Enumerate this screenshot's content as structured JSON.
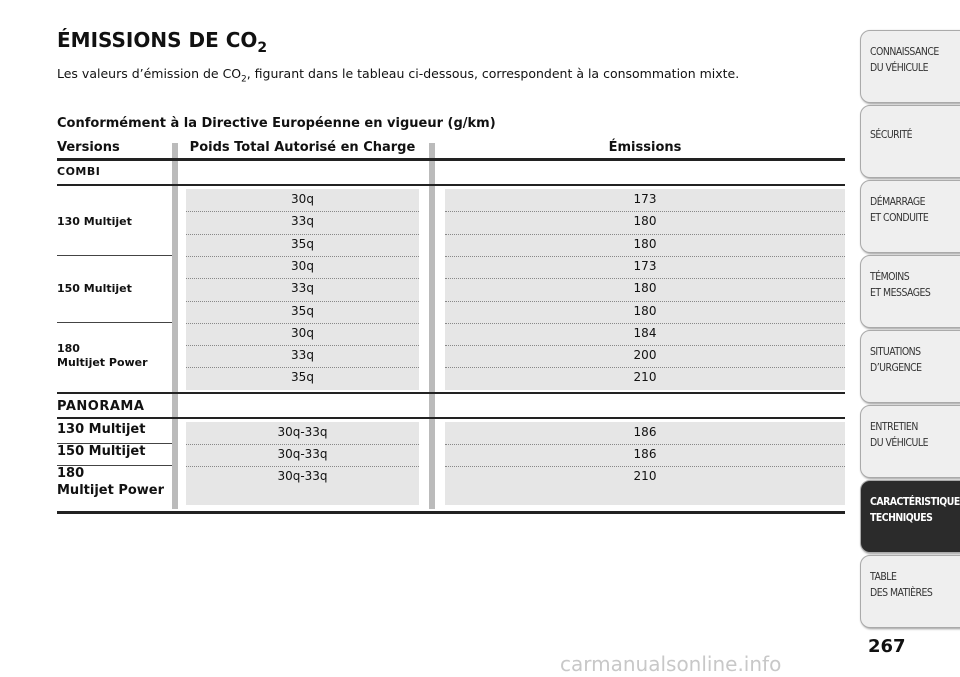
{
  "title": {
    "text": "ÉMISSIONS DE CO",
    "sub": "2"
  },
  "intro": {
    "before": "Les valeurs d’émission de CO",
    "sub": "2",
    "after": ", figurant dans le tableau ci-dessous, correspondent à la consommation mixte."
  },
  "table": {
    "caption": "Conformément à la Directive Européenne en vigueur (g/km)",
    "headers": [
      "Versions",
      "Poids Total Autorisé en Charge",
      "Émissions"
    ],
    "sections": [
      {
        "name": "COMBI",
        "groups": [
          {
            "version": [
              "130 Multijet"
            ],
            "rows": [
              [
                "30q",
                "173"
              ],
              [
                "33q",
                "180"
              ],
              [
                "35q",
                "180"
              ]
            ]
          },
          {
            "version": [
              "150 Multijet"
            ],
            "rows": [
              [
                "30q",
                "173"
              ],
              [
                "33q",
                "180"
              ],
              [
                "35q",
                "180"
              ]
            ]
          },
          {
            "version": [
              "180",
              "Multijet Power"
            ],
            "rows": [
              [
                "30q",
                "184"
              ],
              [
                "33q",
                "200"
              ],
              [
                "35q",
                "210"
              ]
            ]
          }
        ]
      },
      {
        "name": "PANORAMA",
        "groups": [
          {
            "version": [
              "130 Multijet"
            ],
            "rows": [
              [
                "30q-33q",
                "186"
              ]
            ]
          },
          {
            "version": [
              "150 Multijet"
            ],
            "rows": [
              [
                "30q-33q",
                "186"
              ]
            ]
          },
          {
            "version": [
              "180",
              "Multijet Power"
            ],
            "rows": [
              [
                "30q-33q",
                "210"
              ]
            ]
          }
        ]
      }
    ]
  },
  "sidebar": [
    [
      "CONNAISSANCE",
      "DU VÉHICULE"
    ],
    [
      "SÉCURITÉ"
    ],
    [
      "DÉMARRAGE",
      "ET CONDUITE"
    ],
    [
      "TÉMOINS",
      "ET MESSAGES"
    ],
    [
      "SITUATIONS",
      "D’URGENCE"
    ],
    [
      "ENTRETIEN",
      "DU VÉHICULE"
    ],
    [
      "CARACTÉRISTIQUES",
      "TECHNIQUES"
    ],
    [
      "TABLE",
      "DES MATIÈRES"
    ]
  ],
  "active_tab": 6,
  "page_number": "267",
  "watermark": "carmanualsonline.info"
}
